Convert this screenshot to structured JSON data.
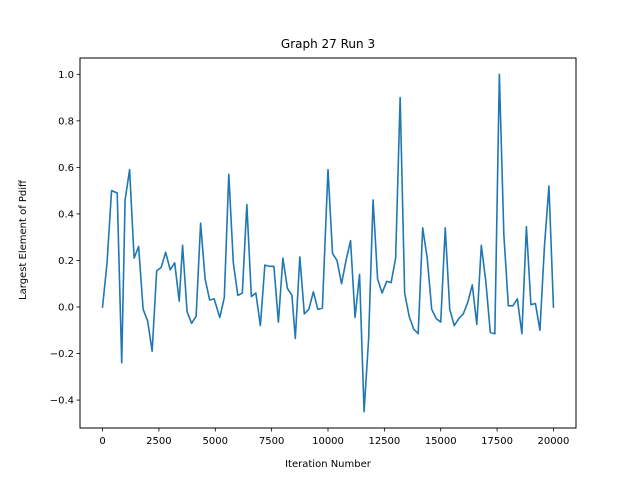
{
  "chart_data": {
    "type": "line",
    "title": "Graph 27 Run 3",
    "xlabel": "Iteration Number",
    "ylabel": "Largest Element of Pdiff",
    "xlim": [
      -1000,
      21000
    ],
    "ylim": [
      -0.52,
      1.07
    ],
    "xticks": [
      0,
      2500,
      5000,
      7500,
      10000,
      12500,
      15000,
      17500,
      20000
    ],
    "xtick_labels": [
      "0",
      "2500",
      "5000",
      "7500",
      "10000",
      "12500",
      "15000",
      "17500",
      "20000"
    ],
    "yticks": [
      -0.4,
      -0.2,
      0.0,
      0.2,
      0.4,
      0.6,
      0.8,
      1.0
    ],
    "ytick_labels": [
      "−0.4",
      "−0.2",
      "0.0",
      "0.2",
      "0.4",
      "0.6",
      "0.8",
      "1.0"
    ],
    "grid": false,
    "color": "#1f77b4",
    "series": [
      {
        "x": [
          0,
          200,
          400,
          650,
          850,
          1000,
          1200,
          1400,
          1600,
          1800,
          2000,
          2200,
          2400,
          2600,
          2800,
          3000,
          3200,
          3400,
          3550,
          3750,
          3950,
          4150,
          4350,
          4550,
          4750,
          4950,
          5200,
          5400,
          5600,
          5800,
          6000,
          6200,
          6400,
          6600,
          6800,
          7000,
          7200,
          7400,
          7600,
          7800,
          8000,
          8200,
          8400,
          8550,
          8750,
          8950,
          9150,
          9350,
          9550,
          9750,
          10000,
          10200,
          10400,
          10600,
          10800,
          11000,
          11200,
          11400,
          11600,
          11800,
          12000,
          12200,
          12400,
          12600,
          12800,
          13000,
          13200,
          13400,
          13600,
          13800,
          14000,
          14200,
          14400,
          14600,
          14800,
          15000,
          15200,
          15400,
          15600,
          15800,
          16000,
          16200,
          16400,
          16600,
          16800,
          17000,
          17200,
          17400,
          17600,
          17800,
          18000,
          18200,
          18400,
          18600,
          18800,
          19000,
          19200,
          19400,
          19600,
          19800,
          20000
        ],
        "y": [
          0.0,
          0.19,
          0.5,
          0.49,
          -0.24,
          0.46,
          0.59,
          0.21,
          0.26,
          -0.01,
          -0.06,
          -0.19,
          0.155,
          0.17,
          0.235,
          0.16,
          0.19,
          0.025,
          0.265,
          -0.02,
          -0.07,
          -0.04,
          0.36,
          0.12,
          0.03,
          0.035,
          -0.045,
          0.04,
          0.57,
          0.19,
          0.05,
          0.06,
          0.44,
          0.045,
          0.06,
          -0.08,
          0.18,
          0.175,
          0.175,
          -0.065,
          0.21,
          0.08,
          0.05,
          -0.135,
          0.215,
          -0.03,
          -0.01,
          0.065,
          -0.01,
          -0.005,
          0.59,
          0.23,
          0.2,
          0.1,
          0.2,
          0.285,
          -0.045,
          0.14,
          -0.45,
          -0.14,
          0.46,
          0.12,
          0.06,
          0.11,
          0.105,
          0.21,
          0.9,
          0.06,
          -0.04,
          -0.095,
          -0.115,
          0.34,
          0.21,
          -0.01,
          -0.05,
          -0.065,
          0.34,
          -0.01,
          -0.08,
          -0.05,
          -0.03,
          0.02,
          0.095,
          -0.075,
          0.265,
          0.11,
          -0.11,
          -0.115,
          1.0,
          0.31,
          0.005,
          0.005,
          0.035,
          -0.115,
          0.345,
          0.01,
          0.015,
          -0.1,
          0.26,
          0.52,
          0.0
        ]
      }
    ]
  }
}
